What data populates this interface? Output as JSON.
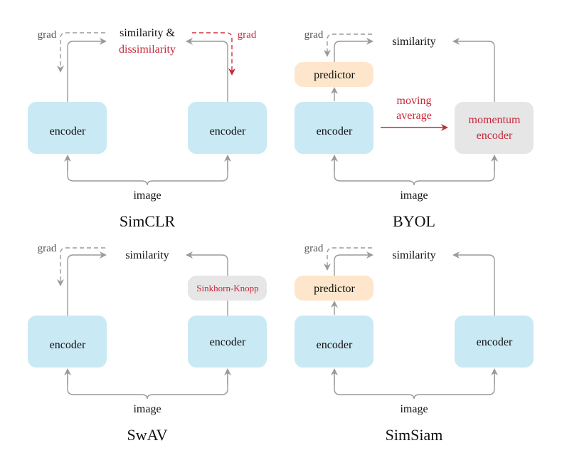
{
  "colors": {
    "encoder": "#c9e9f4",
    "predictor": "#fde6cb",
    "momentum": "#e6e6e6",
    "sinkhorn": "#e6e6e6",
    "arrow": "#9a9a9a",
    "red": "#c8283a"
  },
  "panels": [
    {
      "title": "SimCLR",
      "sim1": "similarity &",
      "sim2": "dissimilarity",
      "grad_left": "grad",
      "grad_right": "grad",
      "left": "encoder",
      "right": "encoder",
      "image": "image"
    },
    {
      "title": "BYOL",
      "sim1": "similarity",
      "grad_left": "grad",
      "predictor": "predictor",
      "left": "encoder",
      "right1": "momentum",
      "right2": "encoder",
      "moving1": "moving",
      "moving2": "average",
      "image": "image"
    },
    {
      "title": "SwAV",
      "sim1": "similarity",
      "grad_left": "grad",
      "sinkhorn": "Sinkhorn-Knopp",
      "left": "encoder",
      "right": "encoder",
      "image": "image"
    },
    {
      "title": "SimSiam",
      "sim1": "similarity",
      "grad_left": "grad",
      "predictor": "predictor",
      "left": "encoder",
      "right": "encoder",
      "image": "image"
    }
  ]
}
